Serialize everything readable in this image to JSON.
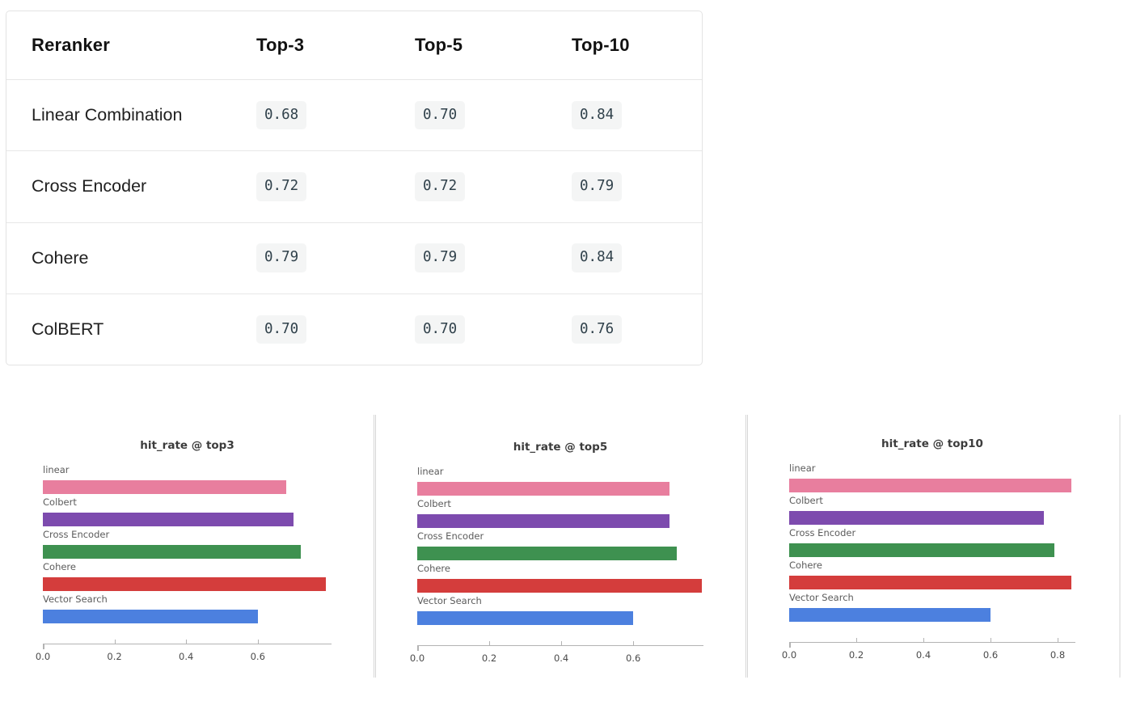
{
  "table": {
    "headers": [
      "Reranker",
      "Top-3",
      "Top-5",
      "Top-10"
    ],
    "rows": [
      {
        "label": "Linear Combination",
        "values": [
          "0.68",
          "0.70",
          "0.84"
        ]
      },
      {
        "label": "Cross Encoder",
        "values": [
          "0.72",
          "0.72",
          "0.79"
        ]
      },
      {
        "label": "Cohere",
        "values": [
          "0.79",
          "0.79",
          "0.84"
        ]
      },
      {
        "label": "ColBERT",
        "values": [
          "0.70",
          "0.70",
          "0.76"
        ]
      }
    ],
    "value_chip_bg": "#f4f5f5",
    "value_chip_text": "#30414b"
  },
  "chart_data": [
    {
      "type": "bar",
      "orientation": "horizontal",
      "title": "hit_rate @ top3",
      "categories": [
        "linear",
        "Colbert",
        "Cross Encoder",
        "Cohere",
        "Vector Search"
      ],
      "values": [
        0.68,
        0.7,
        0.72,
        0.79,
        0.6
      ],
      "colors": [
        "#e87e9e",
        "#7d4bae",
        "#3e9150",
        "#d43d3c",
        "#4c80df"
      ],
      "xticks": [
        0.0,
        0.2,
        0.4,
        0.6
      ],
      "xlim": [
        0,
        0.806
      ],
      "xlabel": "",
      "ylabel": "",
      "grid": false,
      "legend": "none"
    },
    {
      "type": "bar",
      "orientation": "horizontal",
      "title": "hit_rate @ top5",
      "categories": [
        "linear",
        "Colbert",
        "Cross Encoder",
        "Cohere",
        "Vector Search"
      ],
      "values": [
        0.7,
        0.7,
        0.72,
        0.79,
        0.6
      ],
      "colors": [
        "#e87e9e",
        "#7d4bae",
        "#3e9150",
        "#d43d3c",
        "#4c80df"
      ],
      "xticks": [
        0.0,
        0.2,
        0.4,
        0.6
      ],
      "xlim": [
        0,
        0.795
      ],
      "xlabel": "",
      "ylabel": "",
      "grid": false,
      "legend": "none"
    },
    {
      "type": "bar",
      "orientation": "horizontal",
      "title": "hit_rate @ top10",
      "categories": [
        "linear",
        "Colbert",
        "Cross Encoder",
        "Cohere",
        "Vector Search"
      ],
      "values": [
        0.84,
        0.76,
        0.79,
        0.84,
        0.6
      ],
      "colors": [
        "#e87e9e",
        "#7d4bae",
        "#3e9150",
        "#d43d3c",
        "#4c80df"
      ],
      "xticks": [
        0.0,
        0.2,
        0.4,
        0.6,
        0.8
      ],
      "xlim": [
        0,
        0.853
      ],
      "xlabel": "",
      "ylabel": "",
      "grid": false,
      "legend": "none"
    }
  ],
  "chart_style": {
    "axis_line_color": "#b3b3b3",
    "tick_label_color": "#4a4a4a",
    "category_label_color": "#5b5b5b",
    "title_color": "#3c3c3c"
  }
}
